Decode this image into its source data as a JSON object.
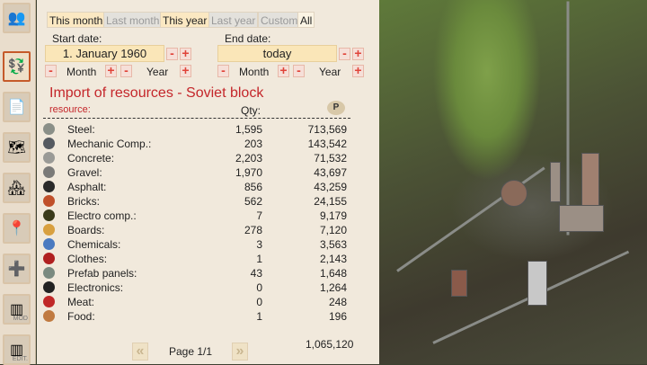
{
  "tabs": [
    {
      "label": "This month",
      "active": true
    },
    {
      "label": "Last month",
      "active": false
    },
    {
      "label": "This year",
      "active": true
    },
    {
      "label": "Last year",
      "active": false
    },
    {
      "label": "Custom",
      "active": false
    },
    {
      "label": "All",
      "active": false
    }
  ],
  "start": {
    "label": "Start date:",
    "value": "1. January 1960"
  },
  "end": {
    "label": "End date:",
    "value": "today"
  },
  "steppers": {
    "month": "Month",
    "year": "Year",
    "minus": "-",
    "plus": "+"
  },
  "title": "Import of resources - Soviet block",
  "columns": {
    "resource": "resource:",
    "qty": "Qty:",
    "value_icon": "money-icon",
    "value_icon_letter": "P"
  },
  "rows": [
    {
      "name": "Steel:",
      "qty": "1,595",
      "value": "713,569",
      "icon": "steel-icon",
      "color": "#8a8f88"
    },
    {
      "name": "Mechanic Comp.:",
      "qty": "203",
      "value": "143,542",
      "icon": "gear-icon",
      "color": "#555a60"
    },
    {
      "name": "Concrete:",
      "qty": "2,203",
      "value": "71,532",
      "icon": "concrete-icon",
      "color": "#9a9a96"
    },
    {
      "name": "Gravel:",
      "qty": "1,970",
      "value": "43,697",
      "icon": "gravel-icon",
      "color": "#7a7a78"
    },
    {
      "name": "Asphalt:",
      "qty": "856",
      "value": "43,259",
      "icon": "asphalt-icon",
      "color": "#2a2a2a"
    },
    {
      "name": "Bricks:",
      "qty": "562",
      "value": "24,155",
      "icon": "bricks-icon",
      "color": "#c0502a"
    },
    {
      "name": "Electro comp.:",
      "qty": "7",
      "value": "9,179",
      "icon": "electro-icon",
      "color": "#3a3a1a"
    },
    {
      "name": "Boards:",
      "qty": "278",
      "value": "7,120",
      "icon": "boards-icon",
      "color": "#d8a040"
    },
    {
      "name": "Chemicals:",
      "qty": "3",
      "value": "3,563",
      "icon": "chemicals-icon",
      "color": "#4a7ac0"
    },
    {
      "name": "Clothes:",
      "qty": "1",
      "value": "2,143",
      "icon": "clothes-icon",
      "color": "#b02020"
    },
    {
      "name": "Prefab panels:",
      "qty": "43",
      "value": "1,648",
      "icon": "panels-icon",
      "color": "#7a8a80"
    },
    {
      "name": "Electronics:",
      "qty": "0",
      "value": "1,264",
      "icon": "electronics-icon",
      "color": "#222"
    },
    {
      "name": "Meat:",
      "qty": "0",
      "value": "248",
      "icon": "meat-icon",
      "color": "#c02828"
    },
    {
      "name": "Food:",
      "qty": "1",
      "value": "196",
      "icon": "food-icon",
      "color": "#c07a40"
    }
  ],
  "total": "1,065,120",
  "pagination": {
    "label": "Page 1/1",
    "prev": "«",
    "next": "»"
  },
  "sidebar": [
    {
      "name": "workers",
      "glyph": "👥",
      "label": ""
    },
    {
      "name": "trade",
      "glyph": "💱",
      "label": "",
      "active": true
    },
    {
      "name": "documents",
      "glyph": "📄",
      "label": ""
    },
    {
      "name": "transport-lines",
      "glyph": "🗺",
      "label": ""
    },
    {
      "name": "buildings",
      "glyph": "🏘",
      "label": ""
    },
    {
      "name": "location",
      "glyph": "📍",
      "label": ""
    },
    {
      "name": "add-building",
      "glyph": "➕",
      "label": ""
    },
    {
      "name": "mod",
      "glyph": "",
      "label": "MOD"
    },
    {
      "name": "edit",
      "glyph": "",
      "label": "EDIT."
    }
  ]
}
